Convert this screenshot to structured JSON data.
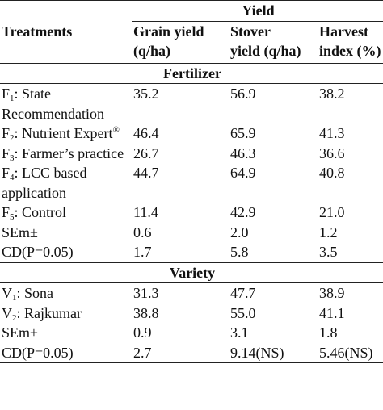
{
  "header": {
    "treatments": "Treatments",
    "group": "Yield",
    "columns": [
      [
        "Grain yield",
        "(q/ha)"
      ],
      [
        "Stover",
        "yield (q/ha)"
      ],
      [
        "Harvest",
        "index (%)"
      ]
    ]
  },
  "sections": [
    {
      "title": "Fertilizer",
      "rows": [
        {
          "treatment": [
            {
              "text": "F"
            },
            {
              "text": "1",
              "style": "sub"
            },
            {
              "text": ": State Recommendation"
            }
          ],
          "values": [
            "35.2",
            "56.9",
            "38.2"
          ]
        },
        {
          "treatment": [
            {
              "text": "F"
            },
            {
              "text": "2",
              "style": "sub"
            },
            {
              "text": ": Nutrient Expert"
            },
            {
              "text": "®",
              "style": "sup"
            }
          ],
          "values": [
            "46.4",
            "65.9",
            "41.3"
          ]
        },
        {
          "treatment": [
            {
              "text": "F"
            },
            {
              "text": "3",
              "style": "sub"
            },
            {
              "text": ": Farmer’s practice"
            }
          ],
          "values": [
            "26.7",
            "46.3",
            "36.6"
          ]
        },
        {
          "treatment": [
            {
              "text": "F"
            },
            {
              "text": "4",
              "style": "sub"
            },
            {
              "text": ": LCC based application"
            }
          ],
          "values": [
            "44.7",
            "64.9",
            "40.8"
          ]
        },
        {
          "treatment": [
            {
              "text": "F"
            },
            {
              "text": "5",
              "style": "sub"
            },
            {
              "text": ": Control"
            }
          ],
          "values": [
            "11.4",
            "42.9",
            "21.0"
          ]
        },
        {
          "treatment": [
            {
              "text": "SEm±"
            }
          ],
          "values": [
            "0.6",
            "2.0",
            "1.2"
          ]
        },
        {
          "treatment": [
            {
              "text": "CD(P=0.05)"
            }
          ],
          "values": [
            "1.7",
            "5.8",
            "3.5"
          ]
        }
      ]
    },
    {
      "title": "Variety",
      "rows": [
        {
          "treatment": [
            {
              "text": "V"
            },
            {
              "text": "1",
              "style": "sub"
            },
            {
              "text": ": Sona"
            }
          ],
          "values": [
            "31.3",
            "47.7",
            "38.9"
          ]
        },
        {
          "treatment": [
            {
              "text": "V"
            },
            {
              "text": "2",
              "style": "sub"
            },
            {
              "text": ": Rajkumar"
            }
          ],
          "values": [
            "38.8",
            "55.0",
            "41.1"
          ]
        },
        {
          "treatment": [
            {
              "text": "SEm±"
            }
          ],
          "values": [
            "0.9",
            "3.1",
            "1.8"
          ]
        },
        {
          "treatment": [
            {
              "text": "CD(P=0.05)"
            }
          ],
          "values": [
            "2.7",
            "9.14(NS)",
            "5.46(NS)"
          ]
        }
      ]
    }
  ]
}
